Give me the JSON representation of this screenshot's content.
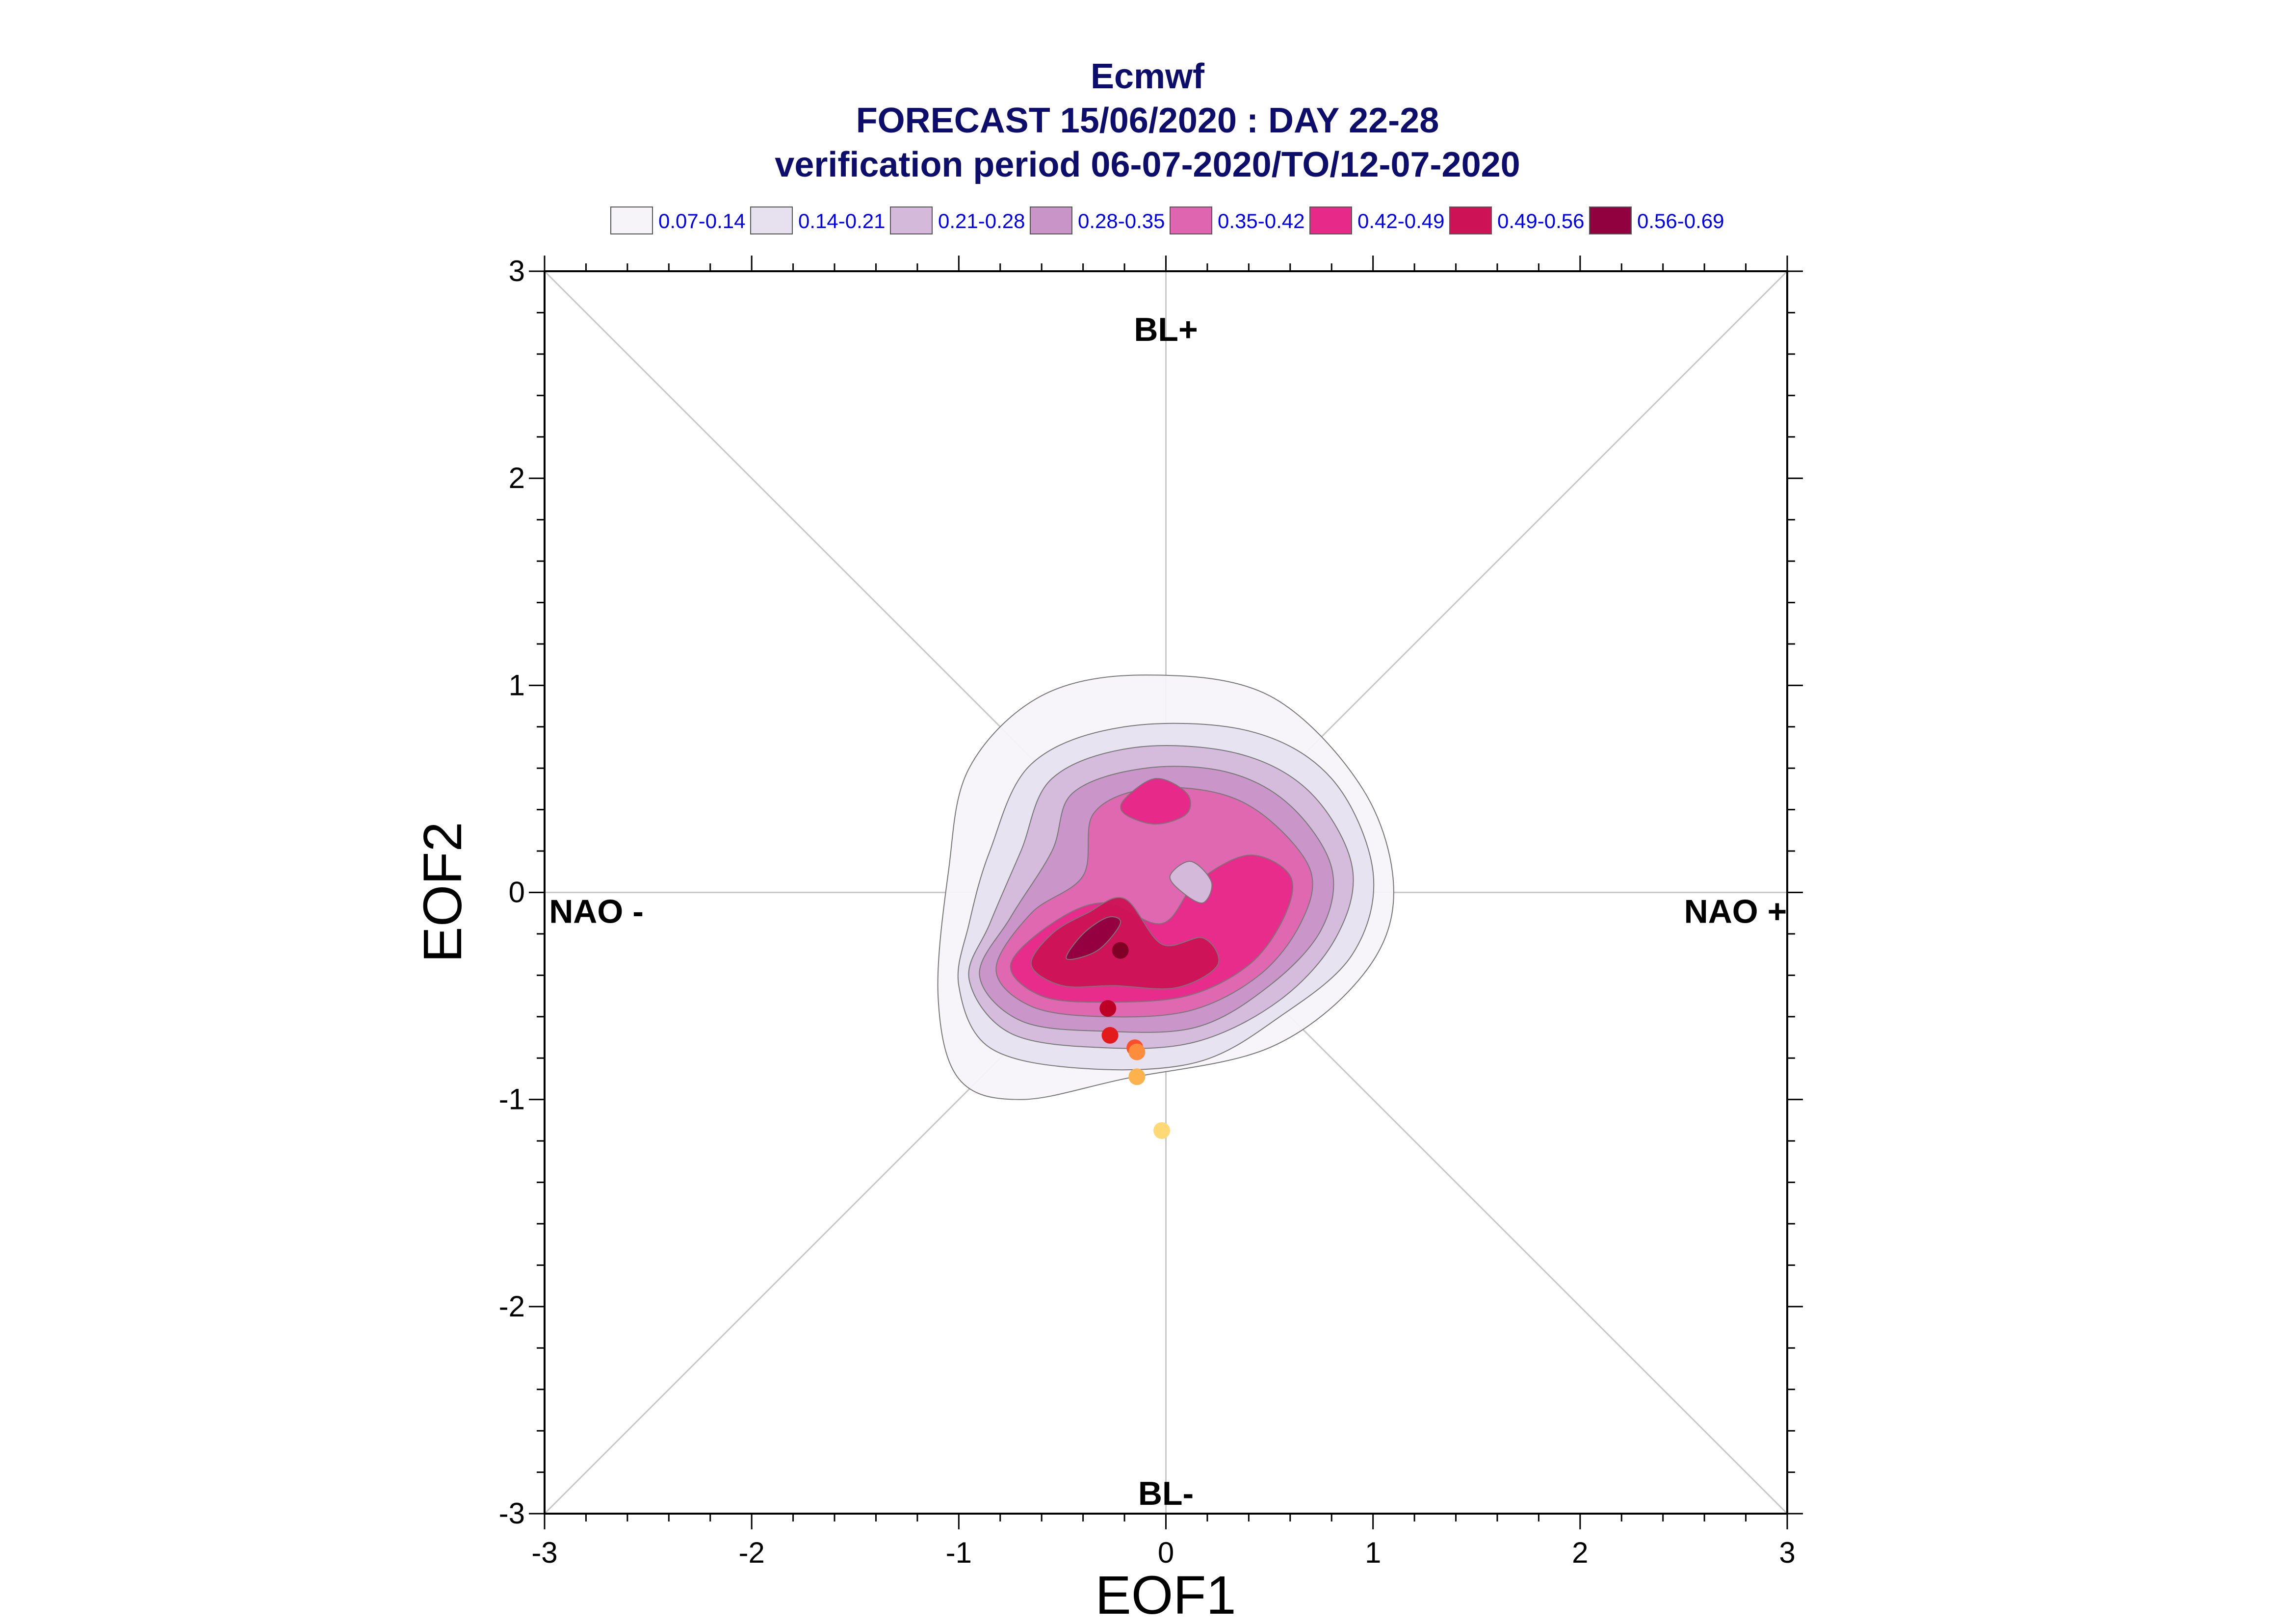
{
  "chart_data": {
    "type": "contour-scatter",
    "title": [
      "Ecmwf",
      "FORECAST 15/06/2020 : DAY 22-28",
      "verification period 06-07-2020/TO/12-07-2020"
    ],
    "xlabel": "EOF1",
    "ylabel": "EOF2",
    "xlim": [
      -3,
      3
    ],
    "ylim": [
      -3,
      3
    ],
    "xticks": [
      -3,
      -2,
      -1,
      0,
      1,
      2,
      3
    ],
    "yticks": [
      -3,
      -2,
      -1,
      0,
      1,
      2,
      3
    ],
    "grid": false,
    "regime_labels": [
      {
        "text": "BL+",
        "x": 0,
        "y": 2.72
      },
      {
        "text": "BL-",
        "x": 0,
        "y": -2.9
      },
      {
        "text": "NAO -",
        "x": -2.75,
        "y": -0.09
      },
      {
        "text": "NAO +",
        "x": 2.75,
        "y": -0.09
      }
    ],
    "legend_placement": "top",
    "legend": [
      {
        "label": "0.07-0.14",
        "color": "#f7f4f9"
      },
      {
        "label": "0.14-0.21",
        "color": "#e7e1ef"
      },
      {
        "label": "0.21-0.28",
        "color": "#d4b9da"
      },
      {
        "label": "0.28-0.35",
        "color": "#c994c7"
      },
      {
        "label": "0.35-0.42",
        "color": "#df65b0"
      },
      {
        "label": "0.42-0.49",
        "color": "#e7298a"
      },
      {
        "label": "0.49-0.56",
        "color": "#ce1256"
      },
      {
        "label": "0.56-0.69",
        "color": "#91003f"
      }
    ],
    "density_contours": [
      {
        "level": "0.07-0.14",
        "color": "#f7f4f9",
        "points": [
          [
            -1.1,
            -0.5
          ],
          [
            -1.0,
            -0.9
          ],
          [
            -0.7,
            -1.0
          ],
          [
            -0.2,
            -0.9
          ],
          [
            0.5,
            -0.75
          ],
          [
            0.95,
            -0.4
          ],
          [
            1.1,
            0.0
          ],
          [
            0.95,
            0.5
          ],
          [
            0.5,
            0.95
          ],
          [
            -0.1,
            1.05
          ],
          [
            -0.6,
            0.95
          ],
          [
            -0.95,
            0.6
          ],
          [
            -1.05,
            0.1
          ]
        ]
      },
      {
        "level": "0.14-0.21",
        "color": "#e7e1ef",
        "points": [
          [
            -1.0,
            -0.45
          ],
          [
            -0.85,
            -0.75
          ],
          [
            -0.4,
            -0.85
          ],
          [
            0.15,
            -0.82
          ],
          [
            0.55,
            -0.6
          ],
          [
            0.9,
            -0.3
          ],
          [
            1.0,
            0.1
          ],
          [
            0.8,
            0.55
          ],
          [
            0.4,
            0.78
          ],
          [
            -0.2,
            0.8
          ],
          [
            -0.65,
            0.62
          ],
          [
            -0.85,
            0.2
          ],
          [
            -0.95,
            -0.15
          ]
        ]
      },
      {
        "level": "0.21-0.28",
        "color": "#d4b9da",
        "points": [
          [
            -0.95,
            -0.42
          ],
          [
            -0.75,
            -0.68
          ],
          [
            -0.3,
            -0.75
          ],
          [
            0.15,
            -0.72
          ],
          [
            0.55,
            -0.52
          ],
          [
            0.82,
            -0.22
          ],
          [
            0.9,
            0.12
          ],
          [
            0.7,
            0.48
          ],
          [
            0.35,
            0.67
          ],
          [
            -0.15,
            0.7
          ],
          [
            -0.55,
            0.55
          ],
          [
            -0.7,
            0.2
          ],
          [
            -0.85,
            -0.15
          ]
        ]
      },
      {
        "level": "0.28-0.35",
        "color": "#c994c7",
        "points": [
          [
            -0.9,
            -0.4
          ],
          [
            -0.7,
            -0.62
          ],
          [
            -0.3,
            -0.67
          ],
          [
            0.15,
            -0.65
          ],
          [
            0.5,
            -0.45
          ],
          [
            0.75,
            -0.18
          ],
          [
            0.8,
            0.12
          ],
          [
            0.6,
            0.42
          ],
          [
            0.3,
            0.58
          ],
          [
            -0.1,
            0.6
          ],
          [
            -0.45,
            0.48
          ],
          [
            -0.55,
            0.2
          ],
          [
            -0.75,
            -0.12
          ]
        ]
      },
      {
        "level": "0.35-0.42",
        "color": "#df65b0",
        "points": [
          [
            -0.82,
            -0.37
          ],
          [
            -0.65,
            -0.55
          ],
          [
            -0.3,
            -0.6
          ],
          [
            0.12,
            -0.57
          ],
          [
            0.45,
            -0.4
          ],
          [
            0.65,
            -0.15
          ],
          [
            0.7,
            0.1
          ],
          [
            0.5,
            0.35
          ],
          [
            0.25,
            0.48
          ],
          [
            -0.1,
            0.5
          ],
          [
            -0.35,
            0.38
          ],
          [
            -0.4,
            0.08
          ],
          [
            -0.65,
            -0.1
          ]
        ]
      },
      {
        "level": "0.42-0.49",
        "color": "#e7298a",
        "points": [
          [
            -0.75,
            -0.35
          ],
          [
            -0.6,
            -0.5
          ],
          [
            -0.3,
            -0.53
          ],
          [
            0.1,
            -0.5
          ],
          [
            0.4,
            -0.35
          ],
          [
            0.57,
            -0.12
          ],
          [
            0.6,
            0.08
          ],
          [
            0.4,
            0.18
          ],
          [
            0.15,
            0.05
          ],
          [
            -0.02,
            -0.15
          ],
          [
            -0.3,
            -0.05
          ],
          [
            -0.55,
            -0.15
          ]
        ]
      },
      {
        "level": "0.49-0.56",
        "color": "#ce1256",
        "points": [
          [
            -0.65,
            -0.35
          ],
          [
            -0.5,
            -0.45
          ],
          [
            -0.25,
            -0.45
          ],
          [
            0.05,
            -0.46
          ],
          [
            0.25,
            -0.35
          ],
          [
            0.18,
            -0.22
          ],
          [
            -0.02,
            -0.25
          ],
          [
            -0.2,
            -0.03
          ],
          [
            -0.38,
            -0.1
          ],
          [
            -0.55,
            -0.2
          ]
        ]
      },
      {
        "level": "0.56-0.69",
        "color": "#91003f",
        "points": [
          [
            -0.48,
            -0.32
          ],
          [
            -0.33,
            -0.28
          ],
          [
            -0.22,
            -0.15
          ],
          [
            -0.28,
            -0.12
          ],
          [
            -0.4,
            -0.2
          ]
        ]
      }
    ],
    "density_peak_2": {
      "level": "0.42-0.49",
      "color": "#e7298a",
      "points": [
        [
          -0.2,
          0.45
        ],
        [
          -0.05,
          0.55
        ],
        [
          0.1,
          0.48
        ],
        [
          0.1,
          0.38
        ],
        [
          -0.05,
          0.33
        ],
        [
          -0.2,
          0.38
        ]
      ]
    },
    "density_hole": {
      "level": "0.28-0.35",
      "color": "#d4b9da",
      "points": [
        [
          0.02,
          0.08
        ],
        [
          0.12,
          0.15
        ],
        [
          0.22,
          0.05
        ],
        [
          0.18,
          -0.05
        ],
        [
          0.08,
          0.0
        ]
      ]
    },
    "members": [
      {
        "x": -0.22,
        "y": -0.28,
        "color": "#800026"
      },
      {
        "x": -0.28,
        "y": -0.56,
        "color": "#bd0026"
      },
      {
        "x": -0.27,
        "y": -0.69,
        "color": "#e31a1c"
      },
      {
        "x": -0.15,
        "y": -0.75,
        "color": "#fc4e2a"
      },
      {
        "x": -0.14,
        "y": -0.77,
        "color": "#fd8d3c"
      },
      {
        "x": -0.14,
        "y": -0.89,
        "color": "#feb24c"
      },
      {
        "x": -0.02,
        "y": -1.15,
        "color": "#fed976"
      }
    ]
  }
}
